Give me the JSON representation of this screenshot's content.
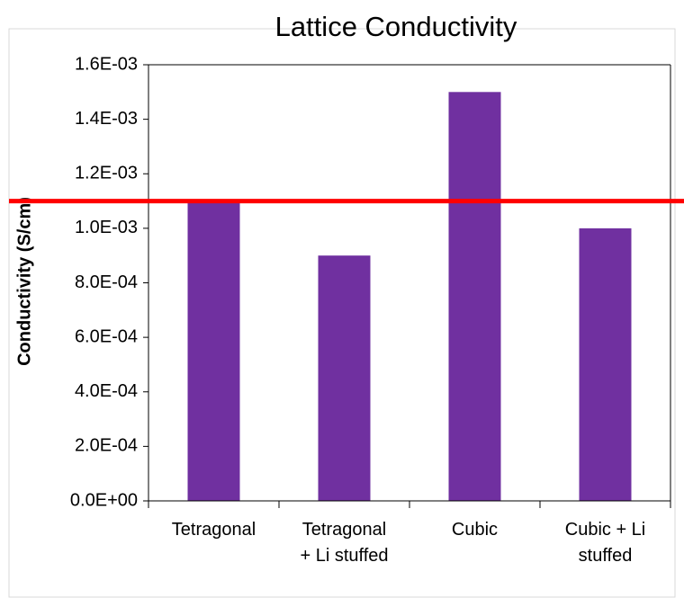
{
  "chart_data": {
    "type": "bar",
    "title": "Lattice Conductivity",
    "y_label": "Conductivity (S/cm)",
    "categories": [
      [
        "Tetragonal"
      ],
      [
        "Tetragonal",
        "+ Li stuffed"
      ],
      [
        "Cubic"
      ],
      [
        "Cubic + Li",
        "stuffed"
      ]
    ],
    "values": [
      0.0011,
      0.0009,
      0.0015,
      0.001
    ],
    "color": "#7030a0",
    "ylim": [
      0,
      0.0016
    ],
    "yticks": [
      {
        "value": 0,
        "label": "0.0E+00"
      },
      {
        "value": 0.0002,
        "label": "2.0E-04"
      },
      {
        "value": 0.0004,
        "label": "4.0E-04"
      },
      {
        "value": 0.0006,
        "label": "6.0E-04"
      },
      {
        "value": 0.0008,
        "label": "8.0E-04"
      },
      {
        "value": 0.001,
        "label": "1.0E-03"
      },
      {
        "value": 0.0012,
        "label": "1.2E-03"
      },
      {
        "value": 0.0014,
        "label": "1.4E-03"
      },
      {
        "value": 0.0016,
        "label": "1.6E-03"
      }
    ],
    "grid": false,
    "reference_line": {
      "value": 0.0011,
      "color": "#ff0000"
    }
  }
}
